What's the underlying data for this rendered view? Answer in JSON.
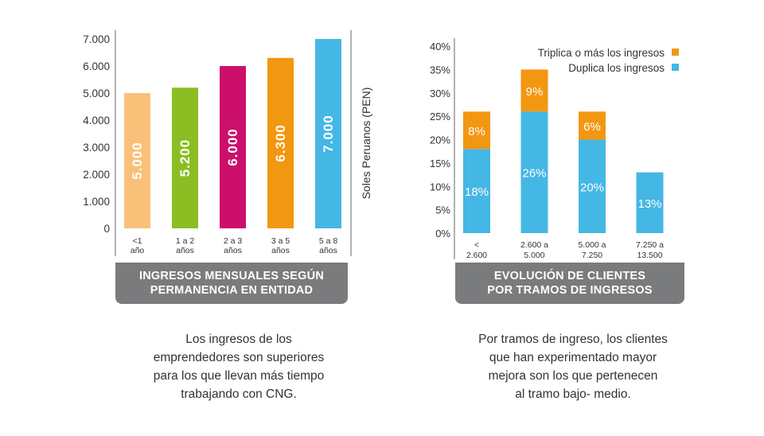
{
  "chart_data": [
    {
      "type": "bar",
      "title": "INGRESOS MENSUALES SEGÚN PERMANENCIA EN ENTIDAD",
      "title_lines": [
        "INGRESOS MENSUALES SEGÚN",
        "PERMANENCIA EN ENTIDAD"
      ],
      "ylabel": "Soles Peruanos (PEN)",
      "ylim": [
        0,
        7000
      ],
      "yticks": [
        "0",
        "1.000",
        "2.000",
        "3.000",
        "4.000",
        "5.000",
        "6.000",
        "7.000"
      ],
      "categories": [
        [
          "<1",
          "año"
        ],
        [
          "1 a 2",
          "años"
        ],
        [
          "2 a 3",
          "años"
        ],
        [
          "3 a 5",
          "años"
        ],
        [
          "5 a 8",
          "años"
        ]
      ],
      "values": [
        5000,
        5200,
        6000,
        6300,
        7000
      ],
      "value_labels": [
        "5.000",
        "5.200",
        "6.000",
        "6.300",
        "7.000"
      ],
      "colors": [
        "#f9c07a",
        "#8cbd23",
        "#cc0f6a",
        "#f29711",
        "#44b7e4"
      ],
      "grid": false
    },
    {
      "type": "bar",
      "stacked": true,
      "title": "EVOLUCIÓN DE CLIENTES POR TRAMOS DE INGRESOS",
      "title_lines": [
        "EVOLUCIÓN DE CLIENTES",
        "POR TRAMOS  DE INGRESOS"
      ],
      "ylim": [
        0,
        40
      ],
      "yticks": [
        "0%",
        "5%",
        "10%",
        "15%",
        "20%",
        "25%",
        "30%",
        "35%",
        "40%"
      ],
      "categories": [
        [
          "<",
          "2.600"
        ],
        [
          "2.600 a",
          "5.000"
        ],
        [
          "5.000 a",
          "7.250"
        ],
        [
          "7.250 a",
          "13.500"
        ]
      ],
      "series": [
        {
          "name": "Duplica los ingresos",
          "color": "#44b7e4",
          "values": [
            18,
            26,
            20,
            13
          ],
          "labels": [
            "18%",
            "26%",
            "20%",
            "13%"
          ]
        },
        {
          "name": "Triplica o más los ingresos",
          "color": "#f29711",
          "values": [
            8,
            9,
            6,
            null
          ],
          "labels": [
            "8%",
            "9%",
            "6%",
            ""
          ]
        }
      ],
      "legend": "top-right",
      "grid": false
    }
  ],
  "captions": {
    "left": "Los ingresos de los emprendedores son superiores para los que llevan más tiempo trabajando con CNG.",
    "left_lines": [
      "Los ingresos de los",
      "emprendedores son superiores",
      "para los que llevan más tiempo",
      "trabajando con CNG."
    ],
    "right": "Por tramos de ingreso, los clientes que han experimentado mayor mejora son los que pertenecen al tramo bajo- medio.",
    "right_lines": [
      "Por tramos de ingreso, los clientes",
      "que han experimentado mayor",
      "mejora son los que pertenecen",
      "al tramo bajo- medio."
    ]
  }
}
